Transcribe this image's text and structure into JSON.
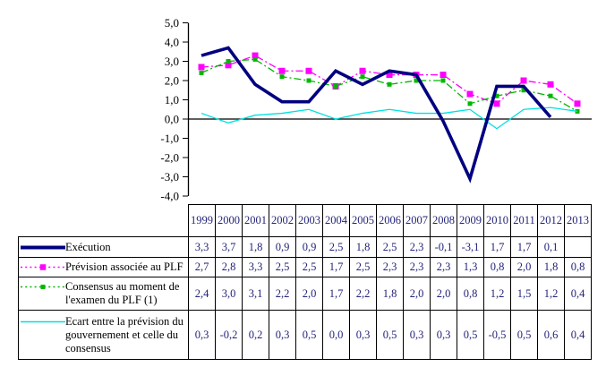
{
  "chart_data": {
    "type": "line",
    "title": "",
    "xlabel": "",
    "ylabel": "",
    "categories": [
      "1999",
      "2000",
      "2001",
      "2002",
      "2003",
      "2004",
      "2005",
      "2006",
      "2007",
      "2008",
      "2009",
      "2010",
      "2011",
      "2012",
      "2013"
    ],
    "series": [
      {
        "name": "Exécution",
        "color": "#000080",
        "line_style": "solid-thick",
        "marker": "none",
        "values": [
          3.3,
          3.7,
          1.8,
          0.9,
          0.9,
          2.5,
          1.8,
          2.5,
          2.3,
          -0.1,
          -3.1,
          1.7,
          1.7,
          0.1,
          null
        ]
      },
      {
        "name": "Prévision associée au PLF",
        "color": "#ff00ff",
        "line_style": "dash-dot",
        "marker": "square-large",
        "values": [
          2.7,
          2.8,
          3.3,
          2.5,
          2.5,
          1.7,
          2.5,
          2.3,
          2.3,
          2.3,
          1.3,
          0.8,
          2.0,
          1.8,
          0.8
        ]
      },
      {
        "name": "Consensus au moment de l'examen du PLF (1)",
        "color": "#00b800",
        "line_style": "dash-dot",
        "marker": "square-small",
        "values": [
          2.4,
          3.0,
          3.1,
          2.2,
          2.0,
          1.7,
          2.2,
          1.8,
          2.0,
          2.0,
          0.8,
          1.2,
          1.5,
          1.2,
          0.4
        ]
      },
      {
        "name": "Ecart entre la prévision du gouvernement et celle du consensus",
        "color": "#00e0e0",
        "line_style": "solid-thin",
        "marker": "none",
        "values": [
          0.3,
          -0.2,
          0.2,
          0.3,
          0.5,
          0.0,
          0.3,
          0.5,
          0.3,
          0.3,
          0.5,
          -0.5,
          0.5,
          0.6,
          0.4
        ]
      }
    ],
    "ylim": [
      -4.0,
      5.0
    ],
    "ytick_step": 1.0,
    "yticks": [
      {
        "v": 5,
        "label": "5,0"
      },
      {
        "v": 4,
        "label": "4,0"
      },
      {
        "v": 3,
        "label": "3,0"
      },
      {
        "v": 2,
        "label": "2,0"
      },
      {
        "v": 1,
        "label": "1,0"
      },
      {
        "v": 0,
        "label": "0,0"
      },
      {
        "v": -1,
        "label": "-1,0"
      },
      {
        "v": -2,
        "label": "-2,0"
      },
      {
        "v": -3,
        "label": "-3,0"
      },
      {
        "v": -4,
        "label": "-4,0"
      }
    ],
    "grid": "off",
    "zero_axis_line": true,
    "legend_position": "table-left-column"
  },
  "table": {
    "years": [
      "1999",
      "2000",
      "2001",
      "2002",
      "2003",
      "2004",
      "2005",
      "2006",
      "2007",
      "2008",
      "2009",
      "2010",
      "2011",
      "2012",
      "2013"
    ],
    "rows": [
      {
        "label": "Exécution",
        "values": [
          "3,3",
          "3,7",
          "1,8",
          "0,9",
          "0,9",
          "2,5",
          "1,8",
          "2,5",
          "2,3",
          "-0,1",
          "-3,1",
          "1,7",
          "1,7",
          "0,1",
          ""
        ]
      },
      {
        "label": "Prévision associée au PLF",
        "values": [
          "2,7",
          "2,8",
          "3,3",
          "2,5",
          "2,5",
          "1,7",
          "2,5",
          "2,3",
          "2,3",
          "2,3",
          "1,3",
          "0,8",
          "2,0",
          "1,8",
          "0,8"
        ]
      },
      {
        "label": "Consensus au moment de\nl'examen du PLF (1)",
        "values": [
          "2,4",
          "3,0",
          "3,1",
          "2,2",
          "2,0",
          "1,7",
          "2,2",
          "1,8",
          "2,0",
          "2,0",
          "0,8",
          "1,2",
          "1,5",
          "1,2",
          "0,4"
        ]
      },
      {
        "label": "Ecart entre la prévision du\ngouvernement et celle du\nconsensus",
        "values": [
          "0,3",
          "-0,2",
          "0,2",
          "0,3",
          "0,5",
          "0,0",
          "0,3",
          "0,5",
          "0,3",
          "0,3",
          "0,5",
          "-0,5",
          "0,5",
          "0,6",
          "0,4"
        ]
      }
    ]
  },
  "colors": {
    "background": "#ffffff",
    "axis": "#000000",
    "table_border": "#000000",
    "table_number_text": "#24247a",
    "table_label_text": "#000000",
    "series_execution": "#000080",
    "series_prevision": "#ff00ff",
    "series_consensus": "#00b800",
    "series_ecart": "#00e0e0"
  }
}
